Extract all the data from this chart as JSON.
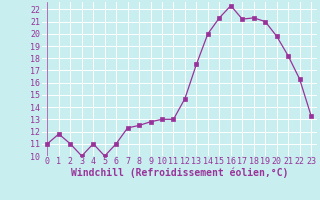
{
  "x": [
    0,
    1,
    2,
    3,
    4,
    5,
    6,
    7,
    8,
    9,
    10,
    11,
    12,
    13,
    14,
    15,
    16,
    17,
    18,
    19,
    20,
    21,
    22,
    23
  ],
  "y": [
    11,
    11.8,
    11,
    10,
    11,
    10,
    11,
    12.3,
    12.5,
    12.8,
    13,
    13,
    14.7,
    17.5,
    20,
    21.3,
    22.3,
    21.2,
    21.3,
    21,
    19.8,
    18.2,
    16.3,
    13.3
  ],
  "line_color": "#993399",
  "marker_color": "#993399",
  "bg_color": "#c8eef0",
  "grid_color": "#b0d8dc",
  "xlabel": "Windchill (Refroidissement éolien,°C)",
  "ylim": [
    10,
    22.6
  ],
  "xlim": [
    -0.5,
    23.5
  ],
  "yticks": [
    10,
    11,
    12,
    13,
    14,
    15,
    16,
    17,
    18,
    19,
    20,
    21,
    22
  ],
  "xticks": [
    0,
    1,
    2,
    3,
    4,
    5,
    6,
    7,
    8,
    9,
    10,
    11,
    12,
    13,
    14,
    15,
    16,
    17,
    18,
    19,
    20,
    21,
    22,
    23
  ],
  "tick_color": "#993399",
  "label_color": "#993399",
  "font_size": 6.0,
  "xlabel_fontsize": 7.0
}
